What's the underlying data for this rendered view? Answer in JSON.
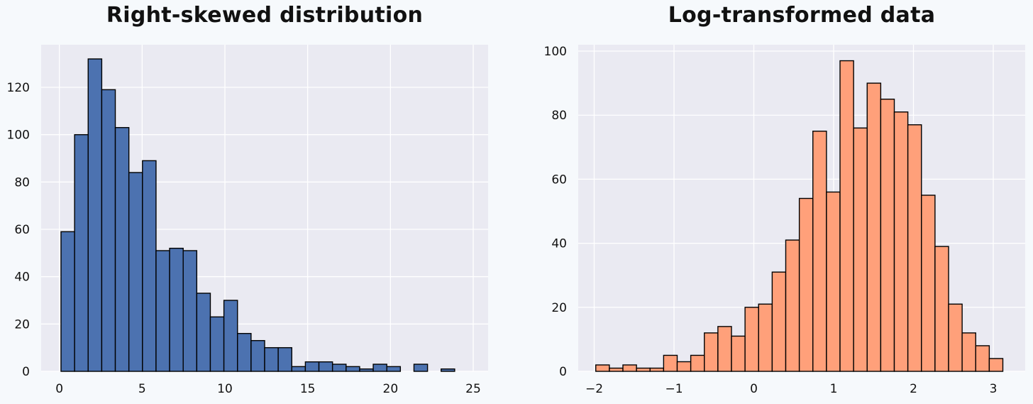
{
  "chart_data": [
    {
      "type": "bar",
      "histogram": true,
      "title": "Right-skewed distribution",
      "xlabel": "",
      "ylabel": "",
      "bin_start": 0.1,
      "bin_width": 0.82,
      "values": [
        59,
        100,
        132,
        119,
        103,
        84,
        89,
        51,
        52,
        51,
        33,
        23,
        30,
        16,
        13,
        10,
        10,
        2,
        4,
        4,
        3,
        2,
        1,
        3,
        2,
        0,
        3,
        0,
        1
      ],
      "xlim": [
        -1.1,
        25.9
      ],
      "ylim": [
        0,
        138
      ],
      "xticks": [
        0,
        5,
        10,
        15,
        20,
        25
      ],
      "xtick_labels": [
        "0",
        "5",
        "10",
        "15",
        "20",
        "25"
      ],
      "yticks": [
        0,
        20,
        40,
        60,
        80,
        100,
        120
      ],
      "ytick_labels": [
        "0",
        "20",
        "40",
        "60",
        "80",
        "100",
        "120"
      ],
      "bar_color": "#4c72b0",
      "edge_color": "#000000",
      "background": "#eaeaf2",
      "grid": true
    },
    {
      "type": "bar",
      "histogram": true,
      "title": "Log-transformed data",
      "xlabel": "",
      "ylabel": "",
      "bin_start": -1.98,
      "bin_width": 0.17,
      "values": [
        2,
        1,
        2,
        1,
        1,
        5,
        3,
        5,
        12,
        14,
        11,
        20,
        21,
        31,
        41,
        54,
        75,
        56,
        97,
        76,
        90,
        85,
        81,
        77,
        55,
        39,
        21,
        12,
        8,
        4
      ],
      "xlim": [
        -2.2,
        3.4
      ],
      "ylim": [
        0,
        102
      ],
      "xticks": [
        -2,
        -1,
        0,
        1,
        2,
        3
      ],
      "xtick_labels": [
        "−2",
        "−1",
        "0",
        "1",
        "2",
        "3"
      ],
      "yticks": [
        0,
        20,
        40,
        60,
        80,
        100
      ],
      "ytick_labels": [
        "0",
        "20",
        "40",
        "60",
        "80",
        "100"
      ],
      "bar_color": "#ffa07a",
      "edge_color": "#000000",
      "background": "#eaeaf2",
      "grid": true
    }
  ]
}
